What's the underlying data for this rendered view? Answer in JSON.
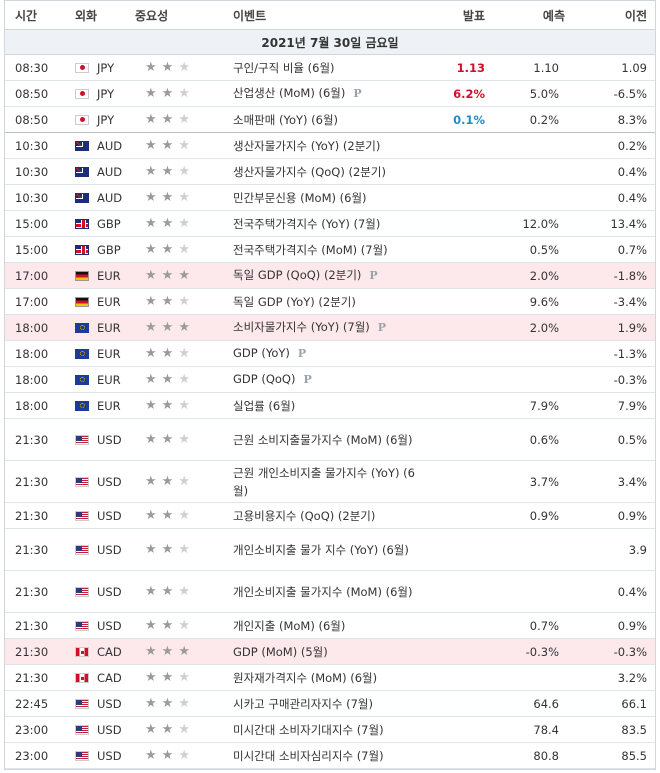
{
  "header": {
    "time": "시간",
    "currency": "외화",
    "importance": "중요성",
    "event": "이벤트",
    "actual": "발표",
    "forecast": "예측",
    "previous": "이전"
  },
  "date_label": "2021년 7월 30일 금요일",
  "rows": [
    {
      "time": "08:30",
      "cur": "JPY",
      "flag": "jp",
      "stars": 2,
      "event": "구인/구직 비율 (6월)",
      "p": "",
      "actual": "1.13",
      "actual_color": "red",
      "forecast": "1.10",
      "previous": "1.09",
      "hl": false,
      "h": 26
    },
    {
      "time": "08:50",
      "cur": "JPY",
      "flag": "jp",
      "stars": 2,
      "event": "산업생산 (MoM) (6월)",
      "p": "P",
      "actual": "6.2%",
      "actual_color": "red",
      "forecast": "5.0%",
      "previous": "-6.5%",
      "hl": false,
      "h": 26
    },
    {
      "time": "08:50",
      "cur": "JPY",
      "flag": "jp",
      "stars": 2,
      "event": "소매판매 (YoY) (6월)",
      "p": "",
      "actual": "0.1%",
      "actual_color": "blue",
      "forecast": "0.2%",
      "previous": "8.3%",
      "hl": false,
      "h": 26,
      "sep": true
    },
    {
      "time": "10:30",
      "cur": "AUD",
      "flag": "au",
      "stars": 2,
      "event": "생산자물가지수 (YoY) (2분기)",
      "p": "",
      "actual": "",
      "forecast": "",
      "previous": "0.2%",
      "hl": false,
      "h": 26
    },
    {
      "time": "10:30",
      "cur": "AUD",
      "flag": "au",
      "stars": 2,
      "event": "생산자물가지수 (QoQ) (2분기)",
      "p": "",
      "actual": "",
      "forecast": "",
      "previous": "0.4%",
      "hl": false,
      "h": 26
    },
    {
      "time": "10:30",
      "cur": "AUD",
      "flag": "au",
      "stars": 2,
      "event": "민간부문신용 (MoM) (6월)",
      "p": "",
      "actual": "",
      "forecast": "",
      "previous": "0.4%",
      "hl": false,
      "h": 26
    },
    {
      "time": "15:00",
      "cur": "GBP",
      "flag": "gb",
      "stars": 2,
      "event": "전국주택가격지수 (YoY) (7월)",
      "p": "",
      "actual": "",
      "forecast": "12.0%",
      "previous": "13.4%",
      "hl": false,
      "h": 26
    },
    {
      "time": "15:00",
      "cur": "GBP",
      "flag": "gb",
      "stars": 2,
      "event": "전국주택가격지수 (MoM) (7월)",
      "p": "",
      "actual": "",
      "forecast": "0.5%",
      "previous": "0.7%",
      "hl": false,
      "h": 26
    },
    {
      "time": "17:00",
      "cur": "EUR",
      "flag": "de",
      "stars": 3,
      "event": "독일 GDP (QoQ) (2분기)",
      "p": "P",
      "actual": "",
      "forecast": "2.0%",
      "previous": "-1.8%",
      "hl": true,
      "h": 26
    },
    {
      "time": "17:00",
      "cur": "EUR",
      "flag": "de",
      "stars": 2,
      "event": "독일 GDP (YoY) (2분기)",
      "p": "",
      "actual": "",
      "forecast": "9.6%",
      "previous": "-3.4%",
      "hl": false,
      "h": 26
    },
    {
      "time": "18:00",
      "cur": "EUR",
      "flag": "eu",
      "stars": 3,
      "event": "소비자물가지수 (YoY) (7월)",
      "p": "P",
      "actual": "",
      "forecast": "2.0%",
      "previous": "1.9%",
      "hl": true,
      "h": 26
    },
    {
      "time": "18:00",
      "cur": "EUR",
      "flag": "eu",
      "stars": 2,
      "event": "GDP (YoY)",
      "p": "P",
      "actual": "",
      "forecast": "",
      "previous": "-1.3%",
      "hl": false,
      "h": 26
    },
    {
      "time": "18:00",
      "cur": "EUR",
      "flag": "eu",
      "stars": 2,
      "event": "GDP (QoQ)",
      "p": "P",
      "actual": "",
      "forecast": "",
      "previous": "-0.3%",
      "hl": false,
      "h": 26
    },
    {
      "time": "18:00",
      "cur": "EUR",
      "flag": "eu",
      "stars": 2,
      "event": "실업률 (6월)",
      "p": "",
      "actual": "",
      "forecast": "7.9%",
      "previous": "7.9%",
      "hl": false,
      "h": 26
    },
    {
      "time": "21:30",
      "cur": "USD",
      "flag": "us",
      "stars": 2,
      "event": "근원 소비지출물가지수 (MoM) (6월)",
      "p": "",
      "actual": "",
      "forecast": "0.6%",
      "previous": "0.5%",
      "hl": false,
      "h": 42
    },
    {
      "time": "21:30",
      "cur": "USD",
      "flag": "us",
      "stars": 2,
      "event": "근원 개인소비지출 물가지수 (YoY) (6월)",
      "p": "",
      "actual": "",
      "forecast": "3.7%",
      "previous": "3.4%",
      "hl": false,
      "h": 42
    },
    {
      "time": "21:30",
      "cur": "USD",
      "flag": "us",
      "stars": 2,
      "event": "고용비용지수 (QoQ) (2분기)",
      "p": "",
      "actual": "",
      "forecast": "0.9%",
      "previous": "0.9%",
      "hl": false,
      "h": 26
    },
    {
      "time": "21:30",
      "cur": "USD",
      "flag": "us",
      "stars": 2,
      "event": "개인소비지출 물가 지수 (YoY) (6월)",
      "p": "",
      "actual": "",
      "forecast": "",
      "previous": "3.9",
      "hl": false,
      "h": 42
    },
    {
      "time": "21:30",
      "cur": "USD",
      "flag": "us",
      "stars": 2,
      "event": "개인소비지출 물가지수 (MoM) (6월)",
      "p": "",
      "actual": "",
      "forecast": "",
      "previous": "0.4%",
      "hl": false,
      "h": 42
    },
    {
      "time": "21:30",
      "cur": "USD",
      "flag": "us",
      "stars": 2,
      "event": "개인지출 (MoM) (6월)",
      "p": "",
      "actual": "",
      "forecast": "0.7%",
      "previous": "0.9%",
      "hl": false,
      "h": 26
    },
    {
      "time": "21:30",
      "cur": "CAD",
      "flag": "ca",
      "stars": 3,
      "event": "GDP (MoM) (5월)",
      "p": "",
      "actual": "",
      "forecast": "-0.3%",
      "previous": "-0.3%",
      "hl": true,
      "h": 26
    },
    {
      "time": "21:30",
      "cur": "CAD",
      "flag": "ca",
      "stars": 2,
      "event": "원자재가격지수 (MoM) (6월)",
      "p": "",
      "actual": "",
      "forecast": "",
      "previous": "3.2%",
      "hl": false,
      "h": 26
    },
    {
      "time": "22:45",
      "cur": "USD",
      "flag": "us",
      "stars": 2,
      "event": "시카고 구매관리자지수 (7월)",
      "p": "",
      "actual": "",
      "forecast": "64.6",
      "previous": "66.1",
      "hl": false,
      "h": 26
    },
    {
      "time": "23:00",
      "cur": "USD",
      "flag": "us",
      "stars": 2,
      "event": "미시간대 소비자기대지수 (7월)",
      "p": "",
      "actual": "",
      "forecast": "78.4",
      "previous": "83.5",
      "hl": false,
      "h": 26
    },
    {
      "time": "23:00",
      "cur": "USD",
      "flag": "us",
      "stars": 2,
      "event": "미시간대 소비자심리지수 (7월)",
      "p": "",
      "actual": "",
      "forecast": "80.8",
      "previous": "85.5",
      "hl": false,
      "h": 26
    }
  ]
}
